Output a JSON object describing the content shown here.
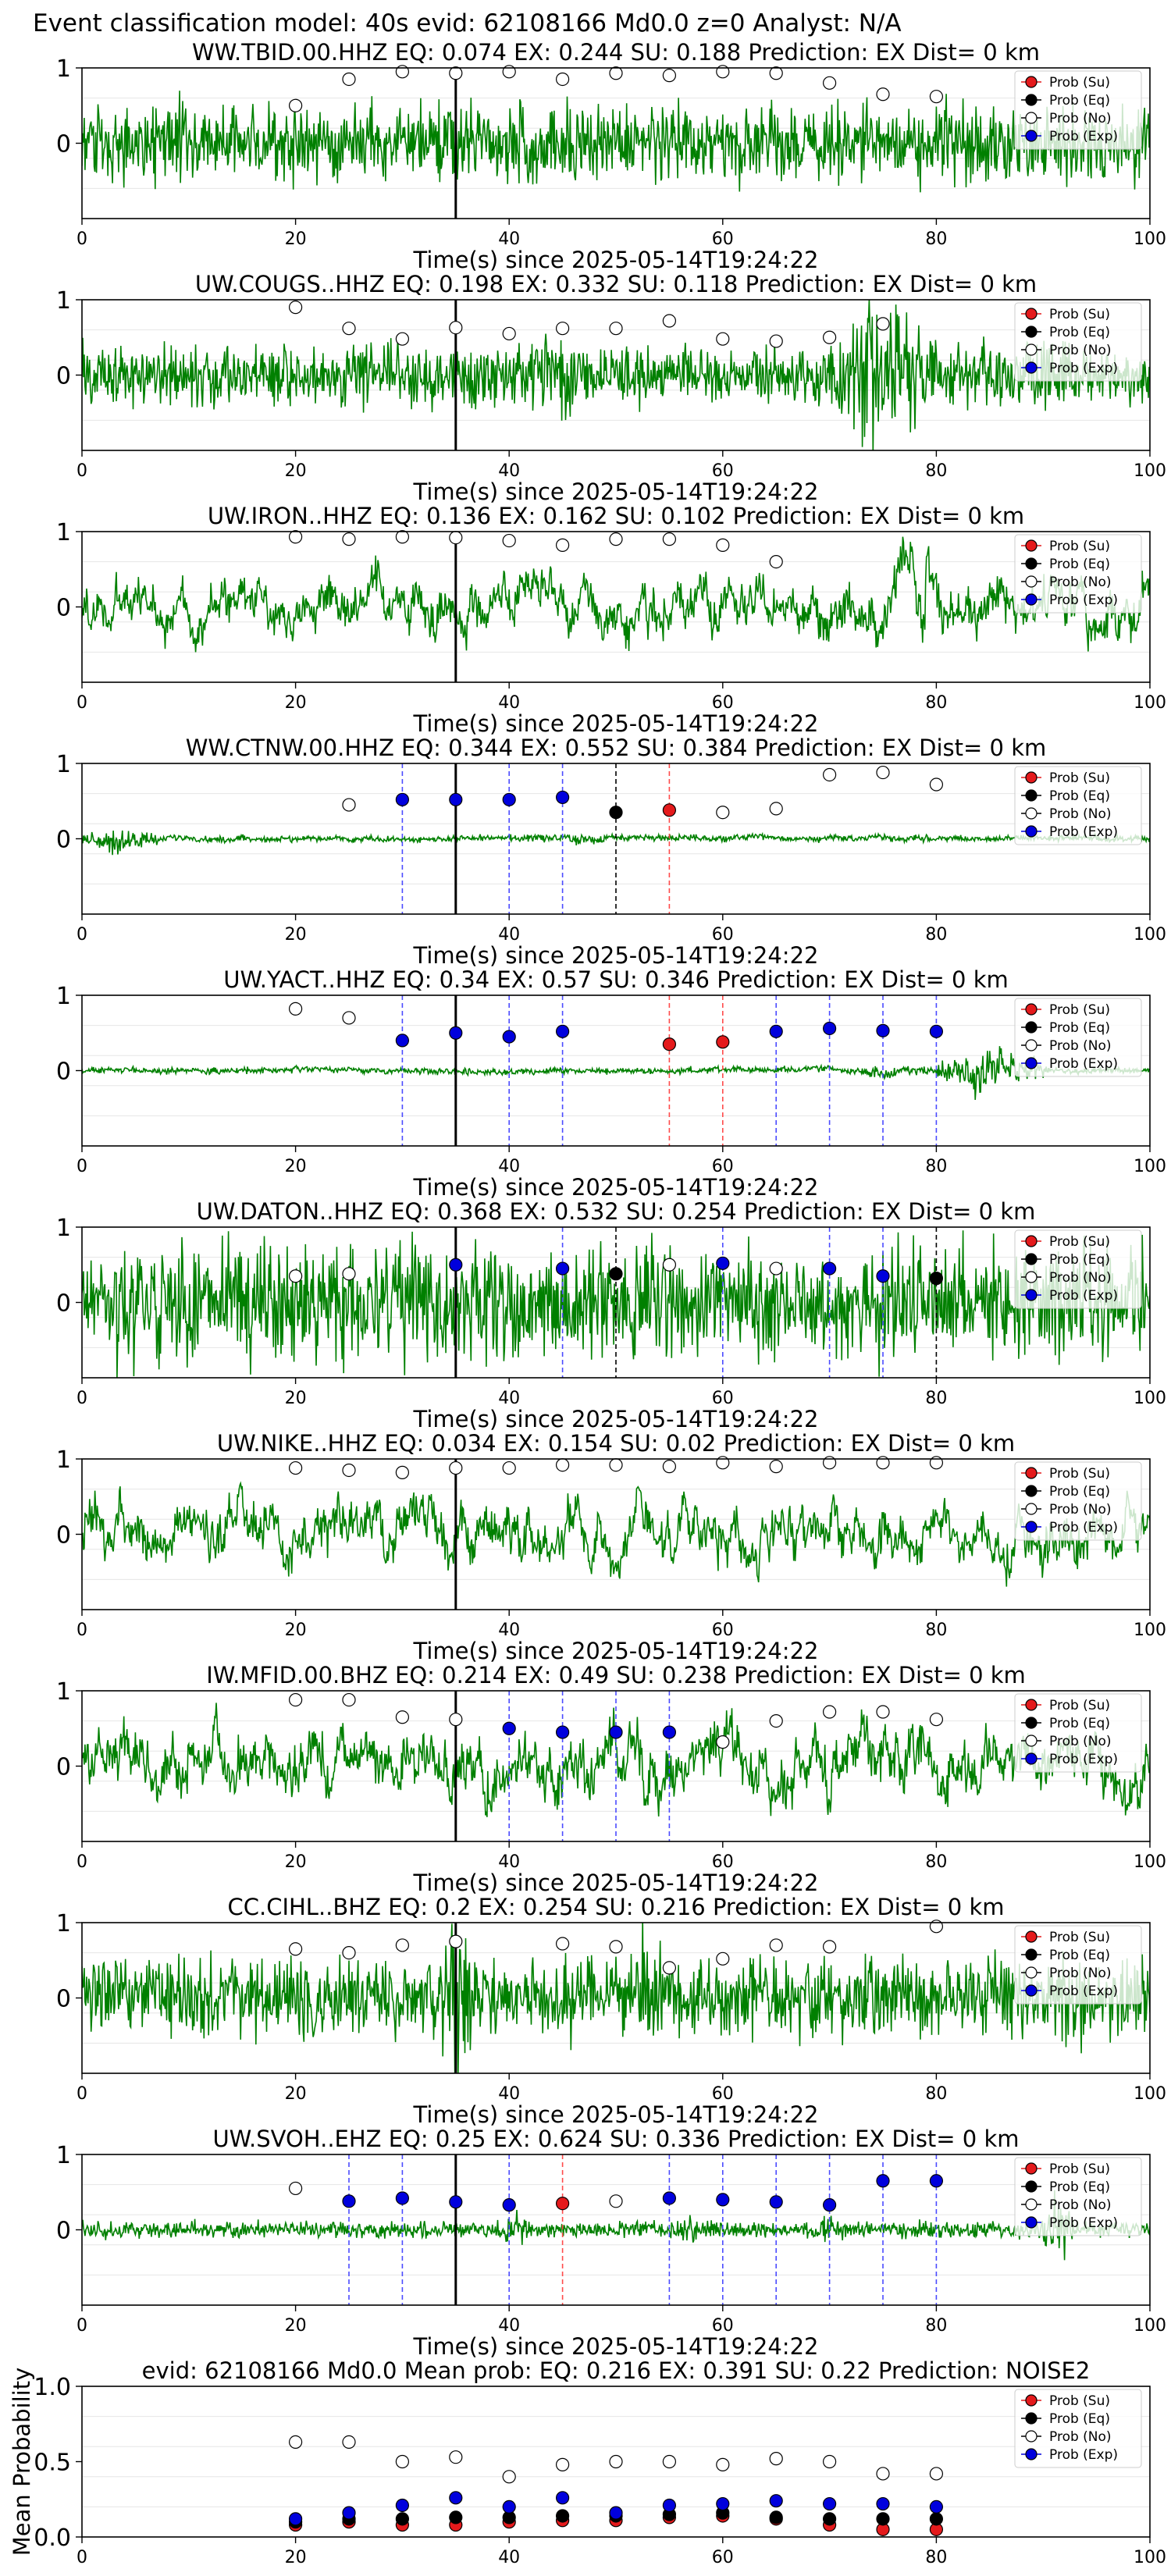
{
  "figure": {
    "header": "Event classification model: 40s evid: 62108166 Md0.0 z=0 Analyst: N/A"
  },
  "legend_labels": [
    "Prob (Su)",
    "Prob (Eq)",
    "Prob (No)",
    "Prob (Exp)"
  ],
  "colors": {
    "waveform": "#008000",
    "su": "#e41a1c",
    "eq": "#000000",
    "no": "#ffffff",
    "exp": "#0000dd",
    "exp_line": "#4b4bff",
    "su_line": "#ff4b4b"
  },
  "chart_data": [
    {
      "type": "line",
      "title": "WW.TBID.00.HHZ   EQ: 0.074  EX: 0.244  SU: 0.188   Prediction: EX    Dist= 0 km",
      "xlabel": "Time(s) since 2025-05-14T19:24:22",
      "ylabel": "",
      "xlim": [
        0,
        100
      ],
      "ylim": [
        -1,
        1
      ],
      "xticks": [
        "0",
        "20",
        "40",
        "60",
        "80",
        "100"
      ],
      "yticks": [
        "1",
        "0"
      ],
      "pick_time": 35,
      "waveform": {
        "style": "noisy",
        "amp": 0.38,
        "bursts": []
      },
      "probabilities": [
        {
          "t": 20,
          "class": "No",
          "p": 0.5
        },
        {
          "t": 25,
          "class": "No",
          "p": 0.85
        },
        {
          "t": 30,
          "class": "No",
          "p": 0.95
        },
        {
          "t": 35,
          "class": "No",
          "p": 0.93
        },
        {
          "t": 40,
          "class": "No",
          "p": 0.95
        },
        {
          "t": 45,
          "class": "No",
          "p": 0.85
        },
        {
          "t": 50,
          "class": "No",
          "p": 0.93
        },
        {
          "t": 55,
          "class": "No",
          "p": 0.9
        },
        {
          "t": 60,
          "class": "No",
          "p": 0.95
        },
        {
          "t": 65,
          "class": "No",
          "p": 0.93
        },
        {
          "t": 70,
          "class": "No",
          "p": 0.8
        },
        {
          "t": 75,
          "class": "No",
          "p": 0.65
        },
        {
          "t": 80,
          "class": "No",
          "p": 0.62
        }
      ]
    },
    {
      "type": "line",
      "title": "UW.COUGS..HHZ   EQ: 0.198  EX: 0.332  SU: 0.118   Prediction: EX    Dist= 0 km",
      "xlabel": "Time(s) since 2025-05-14T19:24:22",
      "ylabel": "",
      "xlim": [
        0,
        100
      ],
      "ylim": [
        -1,
        1
      ],
      "xticks": [
        "0",
        "20",
        "40",
        "60",
        "80",
        "100"
      ],
      "yticks": [
        "1",
        "0"
      ],
      "pick_time": 35,
      "waveform": {
        "style": "noisy",
        "amp": 0.3,
        "bursts": [
          [
            40,
            50,
            1.7
          ],
          [
            70,
            80,
            2.8
          ]
        ]
      },
      "probabilities": [
        {
          "t": 20,
          "class": "No",
          "p": 0.9
        },
        {
          "t": 25,
          "class": "No",
          "p": 0.62
        },
        {
          "t": 30,
          "class": "No",
          "p": 0.48
        },
        {
          "t": 35,
          "class": "No",
          "p": 0.63
        },
        {
          "t": 40,
          "class": "No",
          "p": 0.55
        },
        {
          "t": 45,
          "class": "No",
          "p": 0.62
        },
        {
          "t": 50,
          "class": "No",
          "p": 0.62
        },
        {
          "t": 55,
          "class": "No",
          "p": 0.72
        },
        {
          "t": 60,
          "class": "No",
          "p": 0.48
        },
        {
          "t": 65,
          "class": "No",
          "p": 0.45
        },
        {
          "t": 70,
          "class": "No",
          "p": 0.5
        },
        {
          "t": 75,
          "class": "No",
          "p": 0.68
        }
      ]
    },
    {
      "type": "line",
      "title": "UW.IRON..HHZ   EQ: 0.136  EX: 0.162  SU: 0.102   Prediction: EX    Dist= 0 km",
      "xlabel": "Time(s) since 2025-05-14T19:24:22",
      "ylabel": "",
      "xlim": [
        0,
        100
      ],
      "ylim": [
        -1,
        1
      ],
      "xticks": [
        "0",
        "20",
        "40",
        "60",
        "80",
        "100"
      ],
      "yticks": [
        "1",
        "0"
      ],
      "pick_time": 35,
      "waveform": {
        "style": "smooth",
        "amp": 0.32,
        "bursts": [
          [
            75,
            82,
            2.0
          ]
        ]
      },
      "probabilities": [
        {
          "t": 20,
          "class": "No",
          "p": 0.93
        },
        {
          "t": 25,
          "class": "No",
          "p": 0.9
        },
        {
          "t": 30,
          "class": "No",
          "p": 0.93
        },
        {
          "t": 35,
          "class": "No",
          "p": 0.92
        },
        {
          "t": 40,
          "class": "No",
          "p": 0.88
        },
        {
          "t": 45,
          "class": "No",
          "p": 0.82
        },
        {
          "t": 50,
          "class": "No",
          "p": 0.9
        },
        {
          "t": 55,
          "class": "No",
          "p": 0.9
        },
        {
          "t": 60,
          "class": "No",
          "p": 0.82
        },
        {
          "t": 65,
          "class": "No",
          "p": 0.6
        }
      ]
    },
    {
      "type": "line",
      "title": "WW.CTNW.00.HHZ   EQ: 0.344  EX: 0.552  SU: 0.384   Prediction: EX    Dist= 0 km",
      "xlabel": "Time(s) since 2025-05-14T19:24:22",
      "ylabel": "",
      "xlim": [
        0,
        100
      ],
      "ylim": [
        -1,
        1
      ],
      "xticks": [
        "0",
        "20",
        "40",
        "60",
        "80",
        "100"
      ],
      "yticks": [
        "1",
        "0"
      ],
      "pick_time": 35,
      "waveform": {
        "style": "quiet",
        "amp": 0.06,
        "bursts": [
          [
            0,
            7,
            4.5
          ],
          [
            41,
            50,
            2.2
          ]
        ]
      },
      "probabilities": [
        {
          "t": 25,
          "class": "No",
          "p": 0.45
        },
        {
          "t": 30,
          "class": "Exp",
          "p": 0.52
        },
        {
          "t": 35,
          "class": "Exp",
          "p": 0.52
        },
        {
          "t": 40,
          "class": "Exp",
          "p": 0.52
        },
        {
          "t": 45,
          "class": "Exp",
          "p": 0.55
        },
        {
          "t": 50,
          "class": "Eq",
          "p": 0.35
        },
        {
          "t": 55,
          "class": "Su",
          "p": 0.38
        },
        {
          "t": 60,
          "class": "No",
          "p": 0.35
        },
        {
          "t": 65,
          "class": "No",
          "p": 0.4
        },
        {
          "t": 70,
          "class": "No",
          "p": 0.85
        },
        {
          "t": 75,
          "class": "No",
          "p": 0.88
        },
        {
          "t": 80,
          "class": "No",
          "p": 0.72
        }
      ]
    },
    {
      "type": "line",
      "title": "UW.YACT..HHZ   EQ: 0.34  EX: 0.57  SU: 0.346   Prediction: EX    Dist= 0 km",
      "xlabel": "Time(s) since 2025-05-14T19:24:22",
      "ylabel": "",
      "xlim": [
        0,
        100
      ],
      "ylim": [
        -1,
        1
      ],
      "xticks": [
        "0",
        "20",
        "40",
        "60",
        "80",
        "100"
      ],
      "yticks": [
        "1",
        "0"
      ],
      "pick_time": 35,
      "waveform": {
        "style": "quiet",
        "amp": 0.06,
        "bursts": [
          [
            70,
            80,
            2.2
          ],
          [
            80,
            90,
            8.0
          ]
        ]
      },
      "probabilities": [
        {
          "t": 20,
          "class": "No",
          "p": 0.82
        },
        {
          "t": 25,
          "class": "No",
          "p": 0.7
        },
        {
          "t": 30,
          "class": "Exp",
          "p": 0.4
        },
        {
          "t": 35,
          "class": "Exp",
          "p": 0.5
        },
        {
          "t": 40,
          "class": "Exp",
          "p": 0.45
        },
        {
          "t": 45,
          "class": "Exp",
          "p": 0.52
        },
        {
          "t": 55,
          "class": "Su",
          "p": 0.35
        },
        {
          "t": 60,
          "class": "Su",
          "p": 0.38
        },
        {
          "t": 65,
          "class": "Exp",
          "p": 0.52
        },
        {
          "t": 70,
          "class": "Exp",
          "p": 0.56
        },
        {
          "t": 75,
          "class": "Exp",
          "p": 0.53
        },
        {
          "t": 80,
          "class": "Exp",
          "p": 0.52
        }
      ]
    },
    {
      "type": "line",
      "title": "UW.DATON..HHZ   EQ: 0.368  EX: 0.532  SU: 0.254   Prediction: EX    Dist= 0 km",
      "xlabel": "Time(s) since 2025-05-14T19:24:22",
      "ylabel": "",
      "xlim": [
        0,
        100
      ],
      "ylim": [
        -1,
        1
      ],
      "xticks": [
        "0",
        "20",
        "40",
        "60",
        "80",
        "100"
      ],
      "yticks": [
        "1",
        "0"
      ],
      "pick_time": 35,
      "waveform": {
        "style": "noisy",
        "amp": 0.55,
        "bursts": []
      },
      "probabilities": [
        {
          "t": 20,
          "class": "No",
          "p": 0.35
        },
        {
          "t": 25,
          "class": "No",
          "p": 0.38
        },
        {
          "t": 35,
          "class": "Exp",
          "p": 0.5
        },
        {
          "t": 45,
          "class": "Exp",
          "p": 0.45
        },
        {
          "t": 50,
          "class": "Eq",
          "p": 0.38
        },
        {
          "t": 55,
          "class": "No",
          "p": 0.5
        },
        {
          "t": 60,
          "class": "Exp",
          "p": 0.52
        },
        {
          "t": 65,
          "class": "No",
          "p": 0.45
        },
        {
          "t": 70,
          "class": "Exp",
          "p": 0.45
        },
        {
          "t": 75,
          "class": "Exp",
          "p": 0.35
        },
        {
          "t": 80,
          "class": "Eq",
          "p": 0.32
        }
      ]
    },
    {
      "type": "line",
      "title": "UW.NIKE..HHZ   EQ: 0.034  EX: 0.154  SU: 0.02   Prediction: EX    Dist= 0 km",
      "xlabel": "Time(s) since 2025-05-14T19:24:22",
      "ylabel": "",
      "xlim": [
        0,
        100
      ],
      "ylim": [
        -1,
        1
      ],
      "xticks": [
        "0",
        "20",
        "40",
        "60",
        "80",
        "100"
      ],
      "yticks": [
        "1",
        "0"
      ],
      "pick_time": 35,
      "waveform": {
        "style": "smooth",
        "amp": 0.35,
        "bursts": []
      },
      "probabilities": [
        {
          "t": 20,
          "class": "No",
          "p": 0.88
        },
        {
          "t": 25,
          "class": "No",
          "p": 0.85
        },
        {
          "t": 30,
          "class": "No",
          "p": 0.82
        },
        {
          "t": 35,
          "class": "No",
          "p": 0.88
        },
        {
          "t": 40,
          "class": "No",
          "p": 0.88
        },
        {
          "t": 45,
          "class": "No",
          "p": 0.92
        },
        {
          "t": 50,
          "class": "No",
          "p": 0.92
        },
        {
          "t": 55,
          "class": "No",
          "p": 0.9
        },
        {
          "t": 60,
          "class": "No",
          "p": 0.95
        },
        {
          "t": 65,
          "class": "No",
          "p": 0.9
        },
        {
          "t": 70,
          "class": "No",
          "p": 0.95
        },
        {
          "t": 75,
          "class": "No",
          "p": 0.95
        },
        {
          "t": 80,
          "class": "No",
          "p": 0.95
        }
      ]
    },
    {
      "type": "line",
      "title": "IW.MFID.00.BHZ   EQ: 0.214  EX: 0.49  SU: 0.238   Prediction: EX    Dist= 0 km",
      "xlabel": "Time(s) since 2025-05-14T19:24:22",
      "ylabel": "",
      "xlim": [
        0,
        100
      ],
      "ylim": [
        -1,
        1
      ],
      "xticks": [
        "0",
        "20",
        "40",
        "60",
        "80",
        "100"
      ],
      "yticks": [
        "1",
        "0"
      ],
      "pick_time": 35,
      "waveform": {
        "style": "smooth",
        "amp": 0.4,
        "bursts": [
          [
            75,
            80,
            1.8
          ]
        ]
      },
      "probabilities": [
        {
          "t": 20,
          "class": "No",
          "p": 0.88
        },
        {
          "t": 25,
          "class": "No",
          "p": 0.88
        },
        {
          "t": 30,
          "class": "No",
          "p": 0.65
        },
        {
          "t": 35,
          "class": "No",
          "p": 0.62
        },
        {
          "t": 40,
          "class": "Exp",
          "p": 0.5
        },
        {
          "t": 45,
          "class": "Exp",
          "p": 0.45
        },
        {
          "t": 50,
          "class": "Exp",
          "p": 0.45
        },
        {
          "t": 55,
          "class": "Exp",
          "p": 0.45
        },
        {
          "t": 60,
          "class": "No",
          "p": 0.32
        },
        {
          "t": 65,
          "class": "No",
          "p": 0.6
        },
        {
          "t": 70,
          "class": "No",
          "p": 0.72
        },
        {
          "t": 75,
          "class": "No",
          "p": 0.72
        },
        {
          "t": 80,
          "class": "No",
          "p": 0.62
        }
      ]
    },
    {
      "type": "line",
      "title": "CC.CIHL..BHZ   EQ: 0.2  EX: 0.254  SU: 0.216   Prediction: EX    Dist= 0 km",
      "xlabel": "Time(s) since 2025-05-14T19:24:22",
      "ylabel": "",
      "xlim": [
        0,
        100
      ],
      "ylim": [
        -1,
        1
      ],
      "xticks": [
        "0",
        "20",
        "40",
        "60",
        "80",
        "100"
      ],
      "yticks": [
        "1",
        "0"
      ],
      "pick_time": 35,
      "waveform": {
        "style": "noisy",
        "amp": 0.38,
        "bursts": [
          [
            32,
            38,
            2.0
          ],
          [
            50,
            56,
            1.8
          ]
        ]
      },
      "probabilities": [
        {
          "t": 20,
          "class": "No",
          "p": 0.65
        },
        {
          "t": 25,
          "class": "No",
          "p": 0.6
        },
        {
          "t": 30,
          "class": "No",
          "p": 0.7
        },
        {
          "t": 35,
          "class": "No",
          "p": 0.75
        },
        {
          "t": 45,
          "class": "No",
          "p": 0.72
        },
        {
          "t": 50,
          "class": "No",
          "p": 0.68
        },
        {
          "t": 55,
          "class": "No",
          "p": 0.4
        },
        {
          "t": 60,
          "class": "No",
          "p": 0.52
        },
        {
          "t": 65,
          "class": "No",
          "p": 0.7
        },
        {
          "t": 70,
          "class": "No",
          "p": 0.68
        },
        {
          "t": 80,
          "class": "No",
          "p": 0.95
        }
      ]
    },
    {
      "type": "line",
      "title": "UW.SVOH..EHZ   EQ: 0.25  EX: 0.624  SU: 0.336   Prediction: EX    Dist= 0 km",
      "xlabel": "Time(s) since 2025-05-14T19:24:22",
      "ylabel": "",
      "xlim": [
        0,
        100
      ],
      "ylim": [
        -1,
        1
      ],
      "xticks": [
        "0",
        "20",
        "40",
        "60",
        "80",
        "100"
      ],
      "yticks": [
        "1",
        "0"
      ],
      "pick_time": 35,
      "waveform": {
        "style": "noisy",
        "amp": 0.08,
        "bursts": [
          [
            39,
            42,
            2.5
          ],
          [
            55,
            60,
            2.0
          ],
          [
            68,
            72,
            2.0
          ],
          [
            90,
            93,
            5.0
          ]
        ]
      },
      "probabilities": [
        {
          "t": 20,
          "class": "No",
          "p": 0.55
        },
        {
          "t": 25,
          "class": "Exp",
          "p": 0.38
        },
        {
          "t": 30,
          "class": "Exp",
          "p": 0.42
        },
        {
          "t": 35,
          "class": "Exp",
          "p": 0.37
        },
        {
          "t": 40,
          "class": "Exp",
          "p": 0.33
        },
        {
          "t": 45,
          "class": "Su",
          "p": 0.35
        },
        {
          "t": 50,
          "class": "No",
          "p": 0.38
        },
        {
          "t": 55,
          "class": "Exp",
          "p": 0.42
        },
        {
          "t": 60,
          "class": "Exp",
          "p": 0.4
        },
        {
          "t": 65,
          "class": "Exp",
          "p": 0.37
        },
        {
          "t": 70,
          "class": "Exp",
          "p": 0.33
        },
        {
          "t": 75,
          "class": "Exp",
          "p": 0.65
        },
        {
          "t": 80,
          "class": "Exp",
          "p": 0.65
        }
      ]
    },
    {
      "type": "scatter",
      "title": "evid: 62108166  Md0.0   Mean prob:   EQ: 0.216  EX: 0.391  SU: 0.22   Prediction: NOISE2",
      "xlabel": "",
      "ylabel": "Mean Probability",
      "xlim": [
        0,
        100
      ],
      "ylim": [
        0,
        1
      ],
      "xticks": [
        "0",
        "20",
        "40",
        "60",
        "80",
        "100"
      ],
      "yticks": [
        "1.0",
        "0.5",
        "0.0"
      ],
      "x": [
        20,
        25,
        30,
        35,
        40,
        45,
        50,
        55,
        60,
        65,
        70,
        75,
        80
      ],
      "series": [
        {
          "name": "Prob (Su)",
          "class": "Su",
          "values": [
            0.08,
            0.1,
            0.08,
            0.08,
            0.1,
            0.11,
            0.11,
            0.13,
            0.14,
            0.12,
            0.08,
            0.05,
            0.05
          ]
        },
        {
          "name": "Prob (Eq)",
          "class": "Eq",
          "values": [
            0.1,
            0.12,
            0.12,
            0.13,
            0.13,
            0.14,
            0.14,
            0.15,
            0.16,
            0.13,
            0.12,
            0.12,
            0.12
          ]
        },
        {
          "name": "Prob (No)",
          "class": "No",
          "values": [
            0.63,
            0.63,
            0.5,
            0.53,
            0.4,
            0.48,
            0.5,
            0.5,
            0.48,
            0.52,
            0.5,
            0.42,
            0.42
          ]
        },
        {
          "name": "Prob (Exp)",
          "class": "Exp",
          "values": [
            0.12,
            0.16,
            0.21,
            0.26,
            0.2,
            0.26,
            0.16,
            0.21,
            0.22,
            0.24,
            0.22,
            0.22,
            0.2
          ]
        }
      ]
    }
  ]
}
